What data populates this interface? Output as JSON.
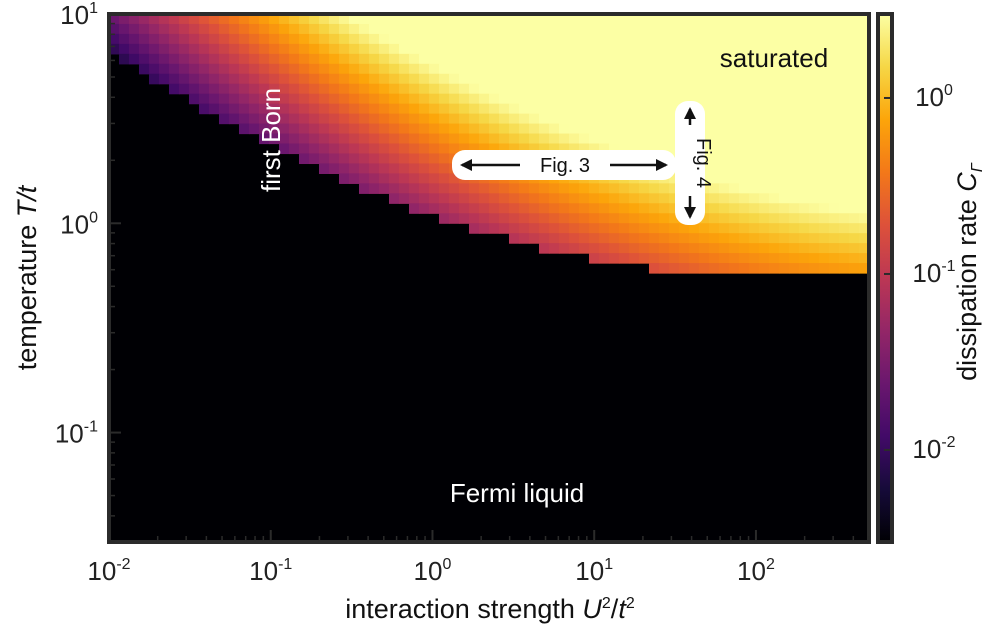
{
  "chart_data": {
    "type": "heatmap",
    "x_scale": "log",
    "y_scale": "log",
    "xlim": [
      0.01,
      500
    ],
    "ylim": [
      0.03,
      10
    ],
    "xlabel_prefix": "interaction strength ",
    "xlabel_var1": "U",
    "xlabel_exp1": "2",
    "xlabel_slash": "/",
    "xlabel_var2": "t",
    "xlabel_exp2": "2",
    "ylabel_prefix": "temperature ",
    "ylabel_var": "T/t",
    "x_ticks": [
      {
        "value": 0.01,
        "base": "10",
        "exp": "-2"
      },
      {
        "value": 0.1,
        "base": "10",
        "exp": "-1"
      },
      {
        "value": 1,
        "base": "10",
        "exp": "0"
      },
      {
        "value": 10,
        "base": "10",
        "exp": "1"
      },
      {
        "value": 100,
        "base": "10",
        "exp": "2"
      }
    ],
    "y_ticks": [
      {
        "value": 0.1,
        "base": "10",
        "exp": "-1"
      },
      {
        "value": 1,
        "base": "10",
        "exp": "0"
      },
      {
        "value": 10,
        "base": "10",
        "exp": "1"
      }
    ],
    "colorbar": {
      "scale": "log",
      "range": [
        0.003,
        3
      ],
      "label_prefix": "dissipation rate ",
      "label_var": "C",
      "label_sub": "Γ",
      "ticks": [
        {
          "value": 1,
          "base": "10",
          "exp": "0"
        },
        {
          "value": 0.1,
          "base": "10",
          "exp": "-1"
        },
        {
          "value": 0.01,
          "base": "10",
          "exp": "-2"
        }
      ],
      "colormap": "inferno",
      "colors": [
        "#000004",
        "#160b39",
        "#420a68",
        "#6a176e",
        "#932667",
        "#bc3754",
        "#dd513a",
        "#f37819",
        "#fca50a",
        "#f6d746",
        "#fcffa4"
      ]
    },
    "annotations": {
      "first_born": "first Born",
      "saturated": "saturated",
      "fermi_liquid": "Fermi liquid",
      "fig3": "Fig. 3",
      "fig4": "Fig. 4"
    },
    "fig3_range": {
      "x_from": 1.2,
      "x_to": 25,
      "y": 1.9
    },
    "fig4_range": {
      "x": 28,
      "y_from": 1.1,
      "y_to": 3.7
    }
  }
}
